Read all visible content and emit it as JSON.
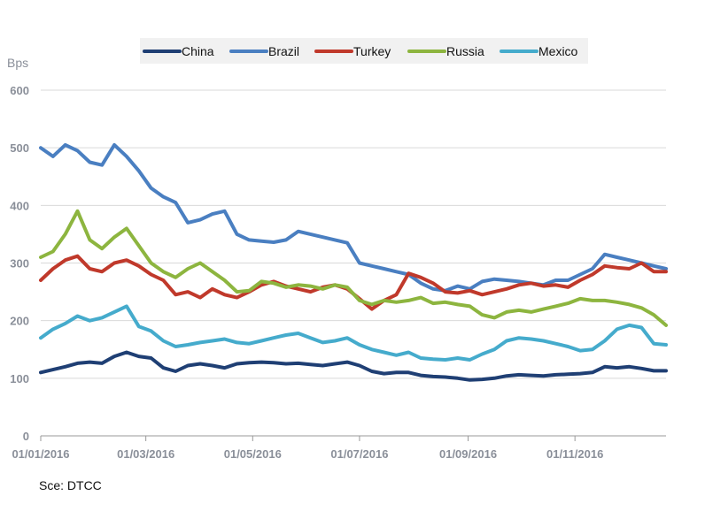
{
  "source_note": "Sce: DTCC",
  "chart_data": {
    "type": "line",
    "title": "",
    "xlabel": "",
    "ylabel": "Bps",
    "ylim": [
      0,
      600
    ],
    "yticks": [
      "0",
      "100",
      "200",
      "300",
      "400",
      "500",
      "600"
    ],
    "xticks": [
      "01/01/2016",
      "01/03/2016",
      "01/05/2016",
      "01/07/2016",
      "01/09/2016",
      "01/11/2016"
    ],
    "x_range": [
      "2016-01-01",
      "2016-12-23"
    ],
    "grid": "horizontal",
    "legend_position": "top",
    "x": [
      "2016-01-01",
      "2016-01-08",
      "2016-01-15",
      "2016-01-22",
      "2016-01-29",
      "2016-02-05",
      "2016-02-12",
      "2016-02-19",
      "2016-02-26",
      "2016-03-04",
      "2016-03-11",
      "2016-03-18",
      "2016-03-25",
      "2016-04-01",
      "2016-04-08",
      "2016-04-15",
      "2016-04-22",
      "2016-04-29",
      "2016-05-06",
      "2016-05-13",
      "2016-05-20",
      "2016-05-27",
      "2016-06-03",
      "2016-06-10",
      "2016-06-17",
      "2016-06-24",
      "2016-07-01",
      "2016-07-08",
      "2016-07-15",
      "2016-07-22",
      "2016-07-29",
      "2016-08-05",
      "2016-08-12",
      "2016-08-19",
      "2016-08-26",
      "2016-09-02",
      "2016-09-09",
      "2016-09-16",
      "2016-09-23",
      "2016-09-30",
      "2016-10-07",
      "2016-10-14",
      "2016-10-21",
      "2016-10-28",
      "2016-11-04",
      "2016-11-11",
      "2016-11-18",
      "2016-11-25",
      "2016-12-02",
      "2016-12-09",
      "2016-12-16",
      "2016-12-23"
    ],
    "series": [
      {
        "name": "China",
        "color": "#1f3f74",
        "values": [
          110,
          115,
          120,
          126,
          128,
          126,
          138,
          145,
          138,
          135,
          118,
          112,
          122,
          125,
          122,
          118,
          125,
          127,
          128,
          127,
          125,
          126,
          124,
          122,
          125,
          128,
          122,
          112,
          108,
          110,
          110,
          105,
          103,
          102,
          100,
          97,
          98,
          100,
          104,
          106,
          105,
          104,
          106,
          107,
          108,
          110,
          120,
          118,
          120,
          117,
          113,
          113
        ]
      },
      {
        "name": "Brazil",
        "color": "#4a7fc1",
        "values": [
          500,
          485,
          505,
          495,
          475,
          470,
          505,
          485,
          460,
          430,
          415,
          405,
          370,
          375,
          385,
          390,
          350,
          340,
          338,
          336,
          340,
          355,
          350,
          345,
          340,
          335,
          300,
          295,
          290,
          285,
          280,
          265,
          255,
          252,
          260,
          255,
          268,
          272,
          270,
          268,
          265,
          262,
          270,
          270,
          280,
          290,
          315,
          310,
          305,
          300,
          295,
          290
        ]
      },
      {
        "name": "Turkey",
        "color": "#c0392b",
        "values": [
          270,
          290,
          305,
          312,
          290,
          285,
          300,
          305,
          295,
          280,
          270,
          245,
          250,
          240,
          255,
          245,
          240,
          250,
          262,
          268,
          260,
          255,
          250,
          258,
          262,
          255,
          238,
          220,
          235,
          245,
          282,
          275,
          265,
          250,
          248,
          252,
          245,
          250,
          255,
          262,
          265,
          260,
          262,
          258,
          270,
          280,
          295,
          292,
          290,
          300,
          285,
          285
        ]
      },
      {
        "name": "Russia",
        "color": "#8db53f",
        "values": [
          310,
          320,
          350,
          390,
          340,
          325,
          345,
          360,
          330,
          300,
          285,
          275,
          290,
          300,
          285,
          270,
          250,
          252,
          268,
          265,
          258,
          262,
          260,
          255,
          262,
          258,
          235,
          228,
          235,
          232,
          235,
          240,
          230,
          232,
          228,
          225,
          210,
          205,
          215,
          218,
          215,
          220,
          225,
          230,
          238,
          235,
          235,
          232,
          228,
          222,
          210,
          192
        ]
      },
      {
        "name": "Mexico",
        "color": "#45abcc",
        "values": [
          170,
          185,
          195,
          208,
          200,
          205,
          215,
          225,
          190,
          182,
          165,
          155,
          158,
          162,
          165,
          168,
          162,
          160,
          165,
          170,
          175,
          178,
          170,
          162,
          165,
          170,
          158,
          150,
          145,
          140,
          145,
          135,
          133,
          132,
          135,
          132,
          142,
          150,
          165,
          170,
          168,
          165,
          160,
          155,
          148,
          150,
          165,
          185,
          192,
          188,
          160,
          158
        ]
      }
    ]
  }
}
